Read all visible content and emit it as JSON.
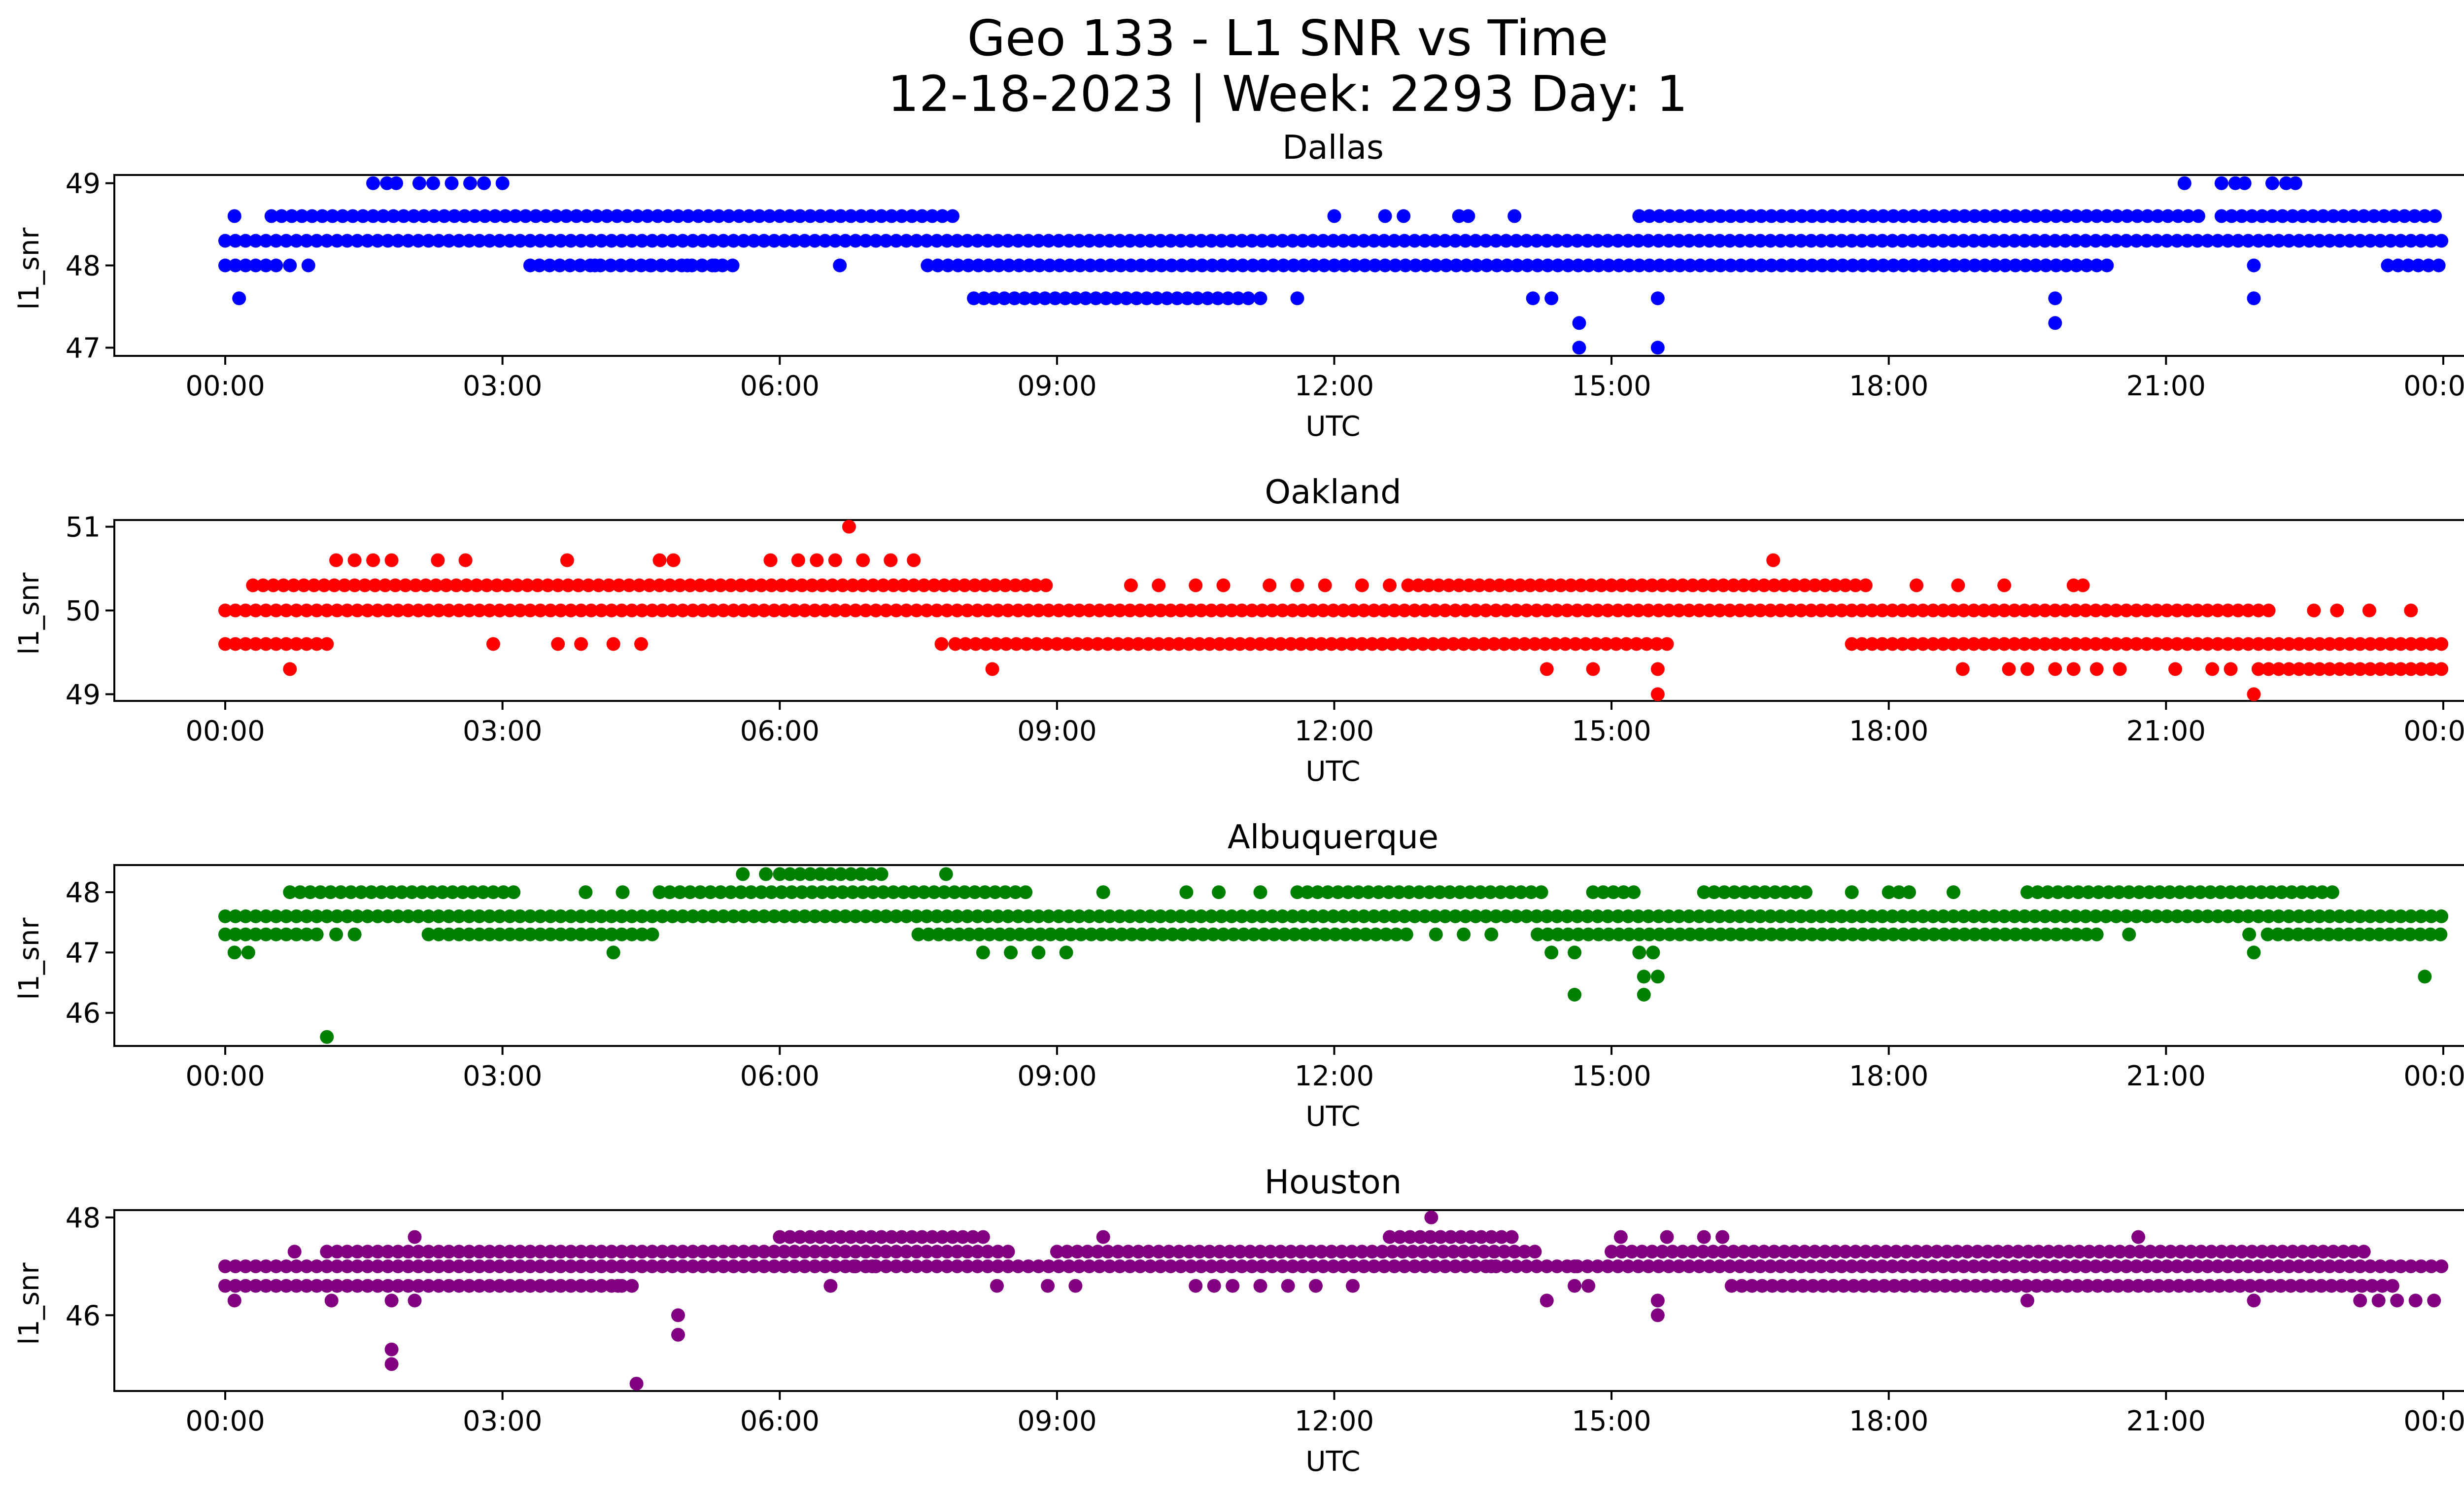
{
  "figure": {
    "title_line1": "Geo 133 - L1 SNR vs Time",
    "title_line2": "12-18-2023 | Week: 2293 Day: 1"
  },
  "chart_data": [
    {
      "type": "scatter",
      "title": "Dallas",
      "xlabel": "UTC",
      "ylabel": "l1_snr",
      "color": "#0000ff",
      "x_ticks": [
        "00:00",
        "03:00",
        "06:00",
        "09:00",
        "12:00",
        "15:00",
        "18:00",
        "21:00",
        "00:00"
      ],
      "y_ticks": [
        47,
        48,
        49
      ],
      "xlim": [
        -1.2,
        25.2
      ],
      "ylim": [
        46.9,
        49.1
      ],
      "bands": [
        {
          "y": 48.3,
          "segments": [
            [
              0,
              24
            ]
          ]
        },
        {
          "y": 48.6,
          "segments": [
            [
              0.1,
              0.2
            ],
            [
              0.5,
              7.9
            ],
            [
              12.0,
              12.1
            ],
            [
              15.3,
              21.4
            ],
            [
              21.6,
              24
            ]
          ]
        },
        {
          "y": 48.0,
          "segments": [
            [
              0,
              0.6
            ],
            [
              3.4,
              5.5
            ],
            [
              7.6,
              20.4
            ],
            [
              23.4,
              24
            ]
          ]
        },
        {
          "y": 47.6,
          "segments": [
            [
              8.1,
              11.1
            ]
          ]
        }
      ],
      "points": [
        [
          0.15,
          47.6
        ],
        [
          0.7,
          48.0
        ],
        [
          0.9,
          48.0
        ],
        [
          1.6,
          49.0
        ],
        [
          1.75,
          49.0
        ],
        [
          1.85,
          49.0
        ],
        [
          2.1,
          49.0
        ],
        [
          2.25,
          49.0
        ],
        [
          2.45,
          49.0
        ],
        [
          2.65,
          49.0
        ],
        [
          2.8,
          49.0
        ],
        [
          3.0,
          49.0
        ],
        [
          3.3,
          48.0
        ],
        [
          4.0,
          48.0
        ],
        [
          4.6,
          48.0
        ],
        [
          5.0,
          48.0
        ],
        [
          5.3,
          48.0
        ],
        [
          6.65,
          48.0
        ],
        [
          11.2,
          47.6
        ],
        [
          11.6,
          47.6
        ],
        [
          12.55,
          48.6
        ],
        [
          12.75,
          48.6
        ],
        [
          13.35,
          48.6
        ],
        [
          13.45,
          48.6
        ],
        [
          13.95,
          48.6
        ],
        [
          14.15,
          47.6
        ],
        [
          14.35,
          47.6
        ],
        [
          14.65,
          47.3
        ],
        [
          14.65,
          47.0
        ],
        [
          15.5,
          47.6
        ],
        [
          15.5,
          47.0
        ],
        [
          19.8,
          47.6
        ],
        [
          19.8,
          47.3
        ],
        [
          21.2,
          49.0
        ],
        [
          21.6,
          49.0
        ],
        [
          21.75,
          49.0
        ],
        [
          21.85,
          49.0
        ],
        [
          22.15,
          49.0
        ],
        [
          22.3,
          49.0
        ],
        [
          22.4,
          49.0
        ],
        [
          21.95,
          48.0
        ],
        [
          21.95,
          47.6
        ]
      ]
    },
    {
      "type": "scatter",
      "title": "Oakland",
      "xlabel": "UTC",
      "ylabel": "l1_snr",
      "color": "#ff0000",
      "x_ticks": [
        "00:00",
        "03:00",
        "06:00",
        "09:00",
        "12:00",
        "15:00",
        "18:00",
        "21:00",
        "00:00"
      ],
      "y_ticks": [
        49,
        50,
        51
      ],
      "xlim": [
        -1.2,
        25.2
      ],
      "ylim": [
        48.92,
        51.08
      ],
      "bands": [
        {
          "y": 50.0,
          "segments": [
            [
              0,
              22.2
            ]
          ]
        },
        {
          "y": 50.3,
          "segments": [
            [
              0.3,
              8.9
            ],
            [
              12.8,
              14.9
            ],
            [
              15.0,
              17.8
            ]
          ]
        },
        {
          "y": 49.6,
          "segments": [
            [
              0,
              1.1
            ],
            [
              7.9,
              15.7
            ],
            [
              17.6,
              24
            ]
          ]
        },
        {
          "y": 49.3,
          "segments": [
            [
              22.0,
              24
            ]
          ]
        }
      ],
      "points": [
        [
          1.2,
          50.6
        ],
        [
          1.4,
          50.6
        ],
        [
          1.6,
          50.6
        ],
        [
          1.8,
          50.6
        ],
        [
          2.3,
          50.6
        ],
        [
          2.6,
          50.6
        ],
        [
          3.7,
          50.6
        ],
        [
          4.7,
          50.6
        ],
        [
          4.85,
          50.6
        ],
        [
          5.9,
          50.6
        ],
        [
          6.2,
          50.6
        ],
        [
          6.4,
          50.6
        ],
        [
          6.6,
          50.6
        ],
        [
          6.75,
          51.0
        ],
        [
          6.9,
          50.6
        ],
        [
          7.2,
          50.6
        ],
        [
          7.45,
          50.6
        ],
        [
          0.7,
          49.3
        ],
        [
          2.9,
          49.6
        ],
        [
          3.6,
          49.6
        ],
        [
          3.85,
          49.6
        ],
        [
          4.2,
          49.6
        ],
        [
          4.5,
          49.6
        ],
        [
          7.75,
          49.6
        ],
        [
          8.3,
          49.3
        ],
        [
          9.8,
          50.3
        ],
        [
          10.1,
          50.3
        ],
        [
          10.5,
          50.3
        ],
        [
          10.8,
          50.3
        ],
        [
          11.3,
          50.3
        ],
        [
          11.6,
          50.3
        ],
        [
          11.9,
          50.3
        ],
        [
          12.3,
          50.3
        ],
        [
          12.6,
          50.3
        ],
        [
          14.3,
          49.3
        ],
        [
          14.8,
          49.3
        ],
        [
          15.5,
          49.3
        ],
        [
          15.5,
          49.0
        ],
        [
          16.75,
          50.6
        ],
        [
          18.3,
          50.3
        ],
        [
          18.75,
          50.3
        ],
        [
          19.25,
          50.3
        ],
        [
          20.0,
          50.3
        ],
        [
          20.1,
          50.3
        ],
        [
          18.8,
          49.3
        ],
        [
          19.3,
          49.3
        ],
        [
          19.5,
          49.3
        ],
        [
          19.8,
          49.3
        ],
        [
          20.0,
          49.3
        ],
        [
          20.25,
          49.3
        ],
        [
          20.5,
          49.3
        ],
        [
          21.1,
          49.3
        ],
        [
          21.5,
          49.3
        ],
        [
          21.7,
          49.3
        ],
        [
          21.95,
          49.0
        ],
        [
          22.6,
          50.0
        ],
        [
          22.85,
          50.0
        ],
        [
          23.2,
          50.0
        ],
        [
          23.65,
          50.0
        ]
      ]
    },
    {
      "type": "scatter",
      "title": "Albuquerque",
      "xlabel": "UTC",
      "ylabel": "l1_snr",
      "color": "#008000",
      "x_ticks": [
        "00:00",
        "03:00",
        "06:00",
        "09:00",
        "12:00",
        "15:00",
        "18:00",
        "21:00",
        "00:00"
      ],
      "y_ticks": [
        46,
        47,
        48
      ],
      "xlim": [
        -1.2,
        25.2
      ],
      "ylim": [
        45.45,
        48.45
      ],
      "bands": [
        {
          "y": 47.6,
          "segments": [
            [
              0,
              24
            ]
          ]
        },
        {
          "y": 47.3,
          "segments": [
            [
              0,
              1.0
            ],
            [
              2.2,
              4.7
            ],
            [
              7.5,
              12.8
            ],
            [
              14.2,
              20.3
            ],
            [
              22.1,
              24
            ]
          ]
        },
        {
          "y": 48.0,
          "segments": [
            [
              0.7,
              3.2
            ],
            [
              4.7,
              8.7
            ],
            [
              11.6,
              14.3
            ],
            [
              14.8,
              15.3
            ],
            [
              16.0,
              17.2
            ],
            [
              18.0,
              18.3
            ],
            [
              19.5,
              22.9
            ]
          ]
        },
        {
          "y": 48.3,
          "segments": [
            [
              6.0,
              7.2
            ]
          ]
        }
      ],
      "points": [
        [
          0.1,
          47.0
        ],
        [
          0.25,
          47.0
        ],
        [
          1.1,
          45.6
        ],
        [
          1.2,
          47.3
        ],
        [
          1.4,
          47.3
        ],
        [
          4.2,
          47.0
        ],
        [
          4.3,
          48.0
        ],
        [
          3.9,
          48.0
        ],
        [
          5.6,
          48.3
        ],
        [
          5.85,
          48.3
        ],
        [
          7.8,
          48.3
        ],
        [
          8.2,
          47.0
        ],
        [
          8.5,
          47.0
        ],
        [
          8.8,
          47.0
        ],
        [
          9.1,
          47.0
        ],
        [
          9.5,
          48.0
        ],
        [
          10.4,
          48.0
        ],
        [
          10.75,
          48.0
        ],
        [
          11.2,
          48.0
        ],
        [
          13.1,
          47.3
        ],
        [
          13.4,
          47.3
        ],
        [
          13.7,
          47.3
        ],
        [
          14.35,
          47.0
        ],
        [
          14.6,
          47.0
        ],
        [
          14.6,
          46.3
        ],
        [
          15.3,
          47.0
        ],
        [
          15.45,
          47.0
        ],
        [
          15.35,
          46.6
        ],
        [
          15.5,
          46.6
        ],
        [
          15.35,
          46.3
        ],
        [
          17.6,
          48.0
        ],
        [
          18.7,
          48.0
        ],
        [
          20.6,
          47.3
        ],
        [
          21.9,
          47.3
        ],
        [
          21.95,
          47.0
        ],
        [
          23.8,
          46.6
        ]
      ]
    },
    {
      "type": "scatter",
      "title": "Houston",
      "xlabel": "UTC",
      "ylabel": "l1_snr",
      "color": "#800080",
      "x_ticks": [
        "00:00",
        "03:00",
        "06:00",
        "09:00",
        "12:00",
        "15:00",
        "18:00",
        "21:00",
        "00:00"
      ],
      "y_ticks": [
        46,
        48
      ],
      "xlim": [
        -1.2,
        25.2
      ],
      "ylim": [
        44.45,
        48.15
      ],
      "bands": [
        {
          "y": 47.0,
          "segments": [
            [
              0,
              24
            ]
          ]
        },
        {
          "y": 47.3,
          "segments": [
            [
              1.1,
              8.5
            ],
            [
              9.0,
              14.2
            ],
            [
              15.0,
              23.2
            ]
          ]
        },
        {
          "y": 46.6,
          "segments": [
            [
              0,
              4.3
            ],
            [
              16.3,
              23.5
            ]
          ]
        },
        {
          "y": 47.6,
          "segments": [
            [
              6.0,
              8.3
            ],
            [
              12.6,
              14.0
            ]
          ]
        }
      ],
      "points": [
        [
          0.1,
          46.3
        ],
        [
          0.75,
          47.3
        ],
        [
          1.15,
          46.3
        ],
        [
          1.8,
          46.3
        ],
        [
          1.8,
          45.3
        ],
        [
          1.8,
          45.0
        ],
        [
          2.05,
          47.6
        ],
        [
          2.05,
          46.3
        ],
        [
          4.25,
          46.6
        ],
        [
          4.4,
          46.6
        ],
        [
          4.45,
          44.6
        ],
        [
          4.9,
          46.0
        ],
        [
          4.9,
          45.6
        ],
        [
          6.55,
          46.6
        ],
        [
          6.8,
          47.0
        ],
        [
          7.0,
          47.0
        ],
        [
          8.35,
          46.6
        ],
        [
          8.9,
          46.6
        ],
        [
          9.2,
          46.6
        ],
        [
          9.5,
          47.6
        ],
        [
          10.5,
          46.6
        ],
        [
          10.7,
          46.6
        ],
        [
          10.9,
          46.6
        ],
        [
          11.2,
          46.6
        ],
        [
          11.5,
          46.6
        ],
        [
          11.8,
          46.6
        ],
        [
          12.2,
          46.6
        ],
        [
          13.05,
          48.0
        ],
        [
          13.7,
          47.0
        ],
        [
          14.6,
          47.0
        ],
        [
          14.6,
          46.6
        ],
        [
          14.75,
          46.6
        ],
        [
          14.3,
          46.3
        ],
        [
          15.1,
          47.6
        ],
        [
          15.6,
          47.6
        ],
        [
          15.5,
          46.3
        ],
        [
          15.5,
          46.0
        ],
        [
          16.0,
          47.6
        ],
        [
          16.2,
          47.6
        ],
        [
          19.5,
          46.3
        ],
        [
          20.7,
          47.6
        ],
        [
          21.95,
          46.3
        ],
        [
          23.1,
          46.3
        ],
        [
          23.3,
          46.3
        ],
        [
          23.5,
          46.3
        ],
        [
          23.7,
          46.3
        ],
        [
          23.9,
          46.3
        ]
      ]
    }
  ]
}
